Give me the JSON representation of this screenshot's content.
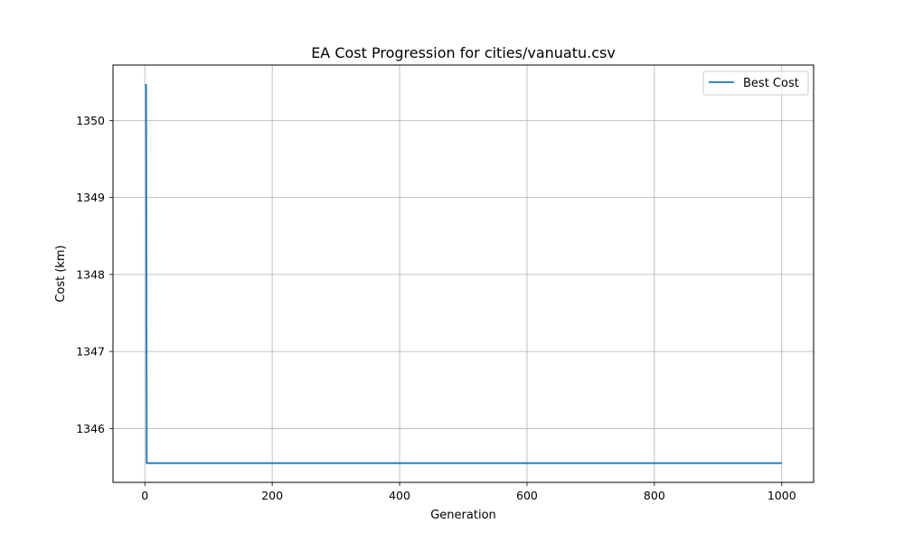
{
  "chart_data": {
    "type": "line",
    "title": "EA Cost Progression for cities/vanuatu.csv",
    "xlabel": "Generation",
    "ylabel": "Cost (km)",
    "xlim": [
      -50,
      1050
    ],
    "ylim": [
      1345.3,
      1350.72
    ],
    "xticks": [
      0,
      200,
      400,
      600,
      800,
      1000
    ],
    "yticks": [
      1346,
      1347,
      1348,
      1349,
      1350
    ],
    "grid": true,
    "legend_position": "top-right",
    "series": [
      {
        "name": "Best Cost",
        "color": "#1f77b4",
        "x": [
          0,
          1,
          2,
          3,
          1000
        ],
        "y": [
          1350.46,
          1350.46,
          1350.46,
          1345.55,
          1345.55
        ]
      }
    ]
  }
}
